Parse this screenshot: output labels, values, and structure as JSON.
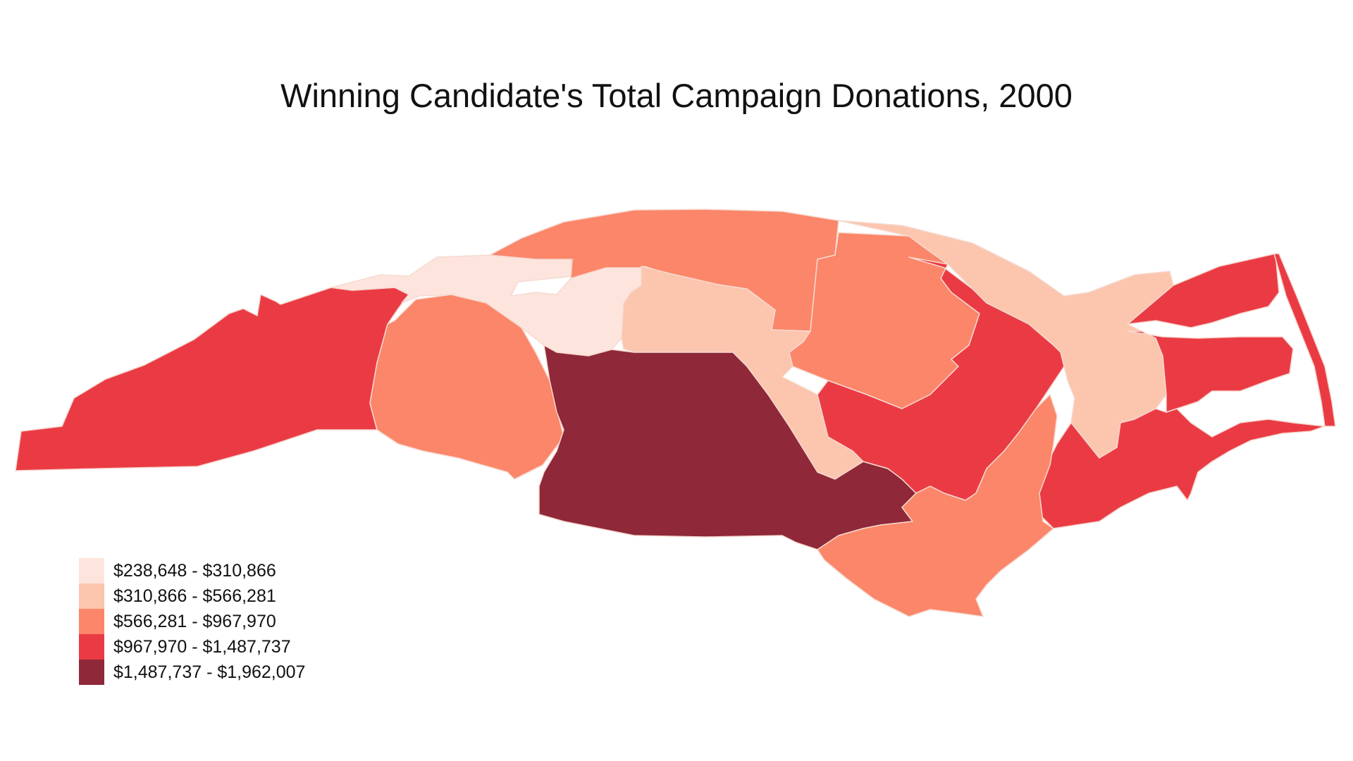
{
  "title": "Winning Candidate's Total Campaign Donations, 2000",
  "legend": [
    {
      "label": "$238,648 - $310,866",
      "color": "#fde5dd"
    },
    {
      "label": "$310,866 - $566,281",
      "color": "#fcc5ad"
    },
    {
      "label": "$566,281 - $967,970",
      "color": "#fb8669"
    },
    {
      "label": "$967,970 - $1,487,737",
      "color": "#ea3b45"
    },
    {
      "label": "$1,487,737 - $1,962,007",
      "color": "#8f2839"
    }
  ]
}
